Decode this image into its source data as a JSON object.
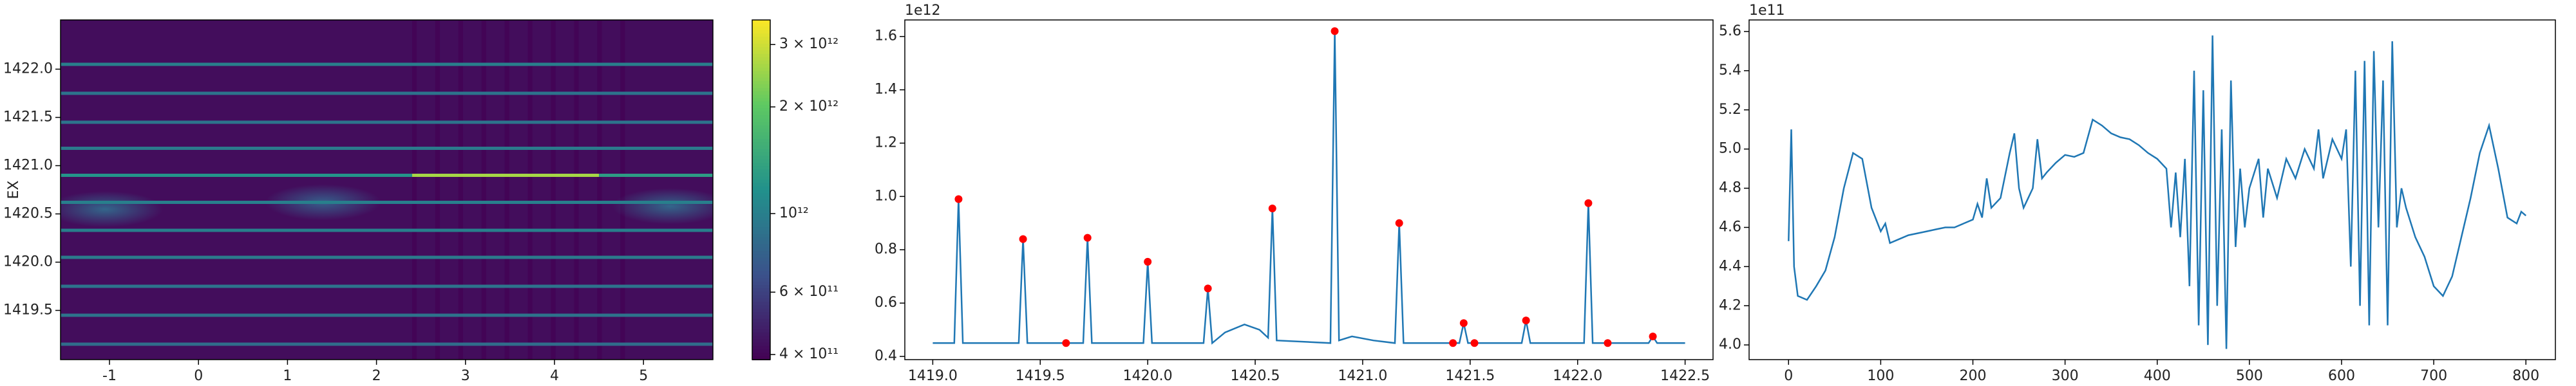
{
  "chart_data": [
    {
      "type": "heatmap",
      "ylabel": "EX",
      "xlim": [
        -1.55,
        5.78
      ],
      "ylim": [
        1418.99,
        1422.51
      ],
      "xticks": [
        -1,
        0,
        1,
        2,
        3,
        4,
        5
      ],
      "yticks": [
        {
          "value": 1419.5,
          "label": "1419.5"
        },
        {
          "value": 1420,
          "label": "1420.0"
        },
        {
          "value": 1420.5,
          "label": "1420.5"
        },
        {
          "value": 1421,
          "label": "1421.0"
        },
        {
          "value": 1421.5,
          "label": "1421.5"
        },
        {
          "value": 1422,
          "label": "1422.0"
        }
      ],
      "zscale": "log",
      "zlim": [
        387000000000,
        3520000000000
      ],
      "zticks": [
        {
          "value": 400000000000,
          "label": "4 × 10¹¹"
        },
        {
          "value": 600000000000,
          "label": "6 × 10¹¹"
        },
        {
          "value": 1000000000000,
          "label": "10¹²"
        },
        {
          "value": 2000000000000,
          "label": "2 × 10¹²"
        },
        {
          "value": 3000000000000,
          "label": "3 × 10¹²"
        }
      ],
      "colormap": "viridis",
      "background": 420000000000,
      "dark_region": {
        "x": [
          2.4,
          5.0
        ],
        "value": 390000000000
      },
      "stripes": [
        {
          "y": 1422.05,
          "x": [
            -1.55,
            5.78
          ],
          "value": 1000000000000
        },
        {
          "y": 1421.75,
          "x": [
            -1.55,
            5.78
          ],
          "value": 900000000000
        },
        {
          "y": 1421.45,
          "x": [
            -1.55,
            5.78
          ],
          "value": 900000000000
        },
        {
          "y": 1421.18,
          "x": [
            -1.55,
            5.78
          ],
          "value": 950000000000
        },
        {
          "y": 1420.9,
          "x": [
            -1.55,
            2.4
          ],
          "value": 1200000000000
        },
        {
          "y": 1420.9,
          "x": [
            2.4,
            4.5
          ],
          "value": 2600000000000
        },
        {
          "y": 1420.9,
          "x": [
            4.5,
            5.78
          ],
          "value": 1300000000000
        },
        {
          "y": 1420.62,
          "x": [
            -1.55,
            5.78
          ],
          "value": 1000000000000
        },
        {
          "y": 1420.33,
          "x": [
            -1.55,
            5.78
          ],
          "value": 1000000000000
        },
        {
          "y": 1420.05,
          "x": [
            -1.55,
            5.78
          ],
          "value": 950000000000
        },
        {
          "y": 1419.75,
          "x": [
            -1.55,
            5.78
          ],
          "value": 900000000000
        },
        {
          "y": 1419.45,
          "x": [
            -1.55,
            5.78
          ],
          "value": 900000000000
        },
        {
          "y": 1419.15,
          "x": [
            -1.55,
            5.78
          ],
          "value": 850000000000
        }
      ],
      "blobs": [
        {
          "x": -1.05,
          "y": 1420.55,
          "value": 800000000000
        },
        {
          "x": 1.4,
          "y": 1420.62,
          "value": 750000000000
        },
        {
          "x": 5.3,
          "y": 1420.58,
          "value": 800000000000
        }
      ]
    },
    {
      "type": "line",
      "y_offset_label": "1e12",
      "xlim": [
        1418.87,
        1422.63
      ],
      "ylim": [
        0.388,
        1.662
      ],
      "xticks": [
        {
          "value": 1419,
          "label": "1419.0"
        },
        1419.5,
        {
          "value": 1420,
          "label": "1420.0"
        },
        1420.5,
        {
          "value": 1421,
          "label": "1421.0"
        },
        1421.5,
        {
          "value": 1422,
          "label": "1422.0"
        },
        1422.5
      ],
      "yticks": [
        0.4,
        0.6,
        0.8,
        {
          "value": 1,
          "label": "1.0"
        },
        1.2,
        1.4,
        1.6
      ],
      "series": [
        {
          "color": "#1f77b4",
          "mode": "line",
          "x": [
            1419.0,
            1419.1,
            1419.12,
            1419.14,
            1419.4,
            1419.42,
            1419.44,
            1419.7,
            1419.72,
            1419.74,
            1419.98,
            1420.0,
            1420.02,
            1420.26,
            1420.28,
            1420.3,
            1420.36,
            1420.45,
            1420.52,
            1420.56,
            1420.58,
            1420.6,
            1420.85,
            1420.87,
            1420.89,
            1420.95,
            1421.05,
            1421.15,
            1421.17,
            1421.19,
            1421.45,
            1421.47,
            1421.49,
            1421.74,
            1421.76,
            1421.78,
            1422.03,
            1422.05,
            1422.07,
            1422.33,
            1422.35,
            1422.37,
            1422.5
          ],
          "values": [
            0.45,
            0.45,
            0.99,
            0.45,
            0.45,
            0.84,
            0.45,
            0.45,
            0.845,
            0.45,
            0.45,
            0.755,
            0.45,
            0.45,
            0.655,
            0.45,
            0.49,
            0.52,
            0.5,
            0.47,
            0.955,
            0.46,
            0.45,
            1.62,
            0.46,
            0.475,
            0.46,
            0.45,
            0.9,
            0.45,
            0.45,
            0.525,
            0.45,
            0.45,
            0.535,
            0.45,
            0.45,
            0.975,
            0.45,
            0.45,
            0.475,
            0.45,
            0.45
          ]
        },
        {
          "color": "#ff0000",
          "mode": "markers",
          "x": [
            1419.12,
            1419.42,
            1419.62,
            1419.72,
            1420.0,
            1420.28,
            1420.58,
            1420.87,
            1421.17,
            1421.42,
            1421.47,
            1421.52,
            1421.76,
            1422.05,
            1422.14,
            1422.35
          ],
          "values": [
            0.99,
            0.84,
            0.45,
            0.845,
            0.755,
            0.655,
            0.955,
            1.62,
            0.9,
            0.45,
            0.525,
            0.45,
            0.535,
            0.975,
            0.45,
            0.475
          ]
        }
      ]
    },
    {
      "type": "line",
      "y_offset_label": "1e11",
      "xlim": [
        -42.8,
        832
      ],
      "ylim": [
        3.925,
        5.659
      ],
      "xticks": [
        0,
        100,
        200,
        300,
        400,
        500,
        600,
        700,
        800
      ],
      "yticks": [
        {
          "value": 4,
          "label": "4.0"
        },
        4.2,
        4.4,
        4.6,
        4.8,
        {
          "value": 5,
          "label": "5.0"
        },
        5.2,
        5.4,
        5.6
      ],
      "series": [
        {
          "color": "#1f77b4",
          "mode": "line",
          "x": [
            0,
            3,
            6,
            10,
            20,
            30,
            40,
            50,
            60,
            70,
            80,
            90,
            100,
            105,
            110,
            120,
            130,
            140,
            150,
            160,
            170,
            180,
            190,
            200,
            205,
            210,
            215,
            220,
            230,
            240,
            245,
            250,
            255,
            260,
            265,
            270,
            275,
            280,
            290,
            300,
            310,
            320,
            330,
            340,
            350,
            360,
            370,
            380,
            390,
            400,
            410,
            415,
            420,
            425,
            430,
            435,
            440,
            445,
            450,
            455,
            460,
            465,
            470,
            475,
            480,
            485,
            490,
            495,
            500,
            510,
            515,
            520,
            530,
            540,
            550,
            560,
            570,
            575,
            580,
            590,
            600,
            605,
            610,
            615,
            620,
            625,
            630,
            635,
            640,
            645,
            650,
            655,
            660,
            665,
            670,
            680,
            690,
            700,
            710,
            720,
            730,
            740,
            750,
            760,
            770,
            780,
            790,
            795,
            800
          ],
          "values": [
            4.53,
            5.1,
            4.4,
            4.25,
            4.23,
            4.3,
            4.38,
            4.55,
            4.8,
            4.98,
            4.95,
            4.7,
            4.58,
            4.62,
            4.52,
            4.54,
            4.56,
            4.57,
            4.58,
            4.59,
            4.6,
            4.6,
            4.62,
            4.64,
            4.72,
            4.65,
            4.85,
            4.7,
            4.75,
            4.98,
            5.08,
            4.8,
            4.7,
            4.75,
            4.8,
            5.05,
            4.85,
            4.88,
            4.93,
            4.97,
            4.96,
            4.98,
            5.15,
            5.12,
            5.08,
            5.06,
            5.05,
            5.02,
            4.98,
            4.95,
            4.9,
            4.6,
            4.88,
            4.55,
            4.95,
            4.3,
            5.4,
            4.1,
            5.3,
            4.0,
            5.58,
            4.2,
            5.1,
            3.98,
            5.35,
            4.5,
            4.9,
            4.6,
            4.8,
            4.95,
            4.65,
            4.9,
            4.75,
            4.95,
            4.85,
            5.0,
            4.9,
            5.1,
            4.85,
            5.05,
            4.95,
            5.1,
            4.4,
            5.4,
            4.2,
            5.45,
            4.1,
            5.5,
            4.6,
            5.35,
            4.1,
            5.55,
            4.6,
            4.8,
            4.7,
            4.55,
            4.45,
            4.3,
            4.25,
            4.35,
            4.55,
            4.75,
            4.98,
            5.12,
            4.9,
            4.65,
            4.62,
            4.68,
            4.66
          ]
        }
      ]
    }
  ]
}
